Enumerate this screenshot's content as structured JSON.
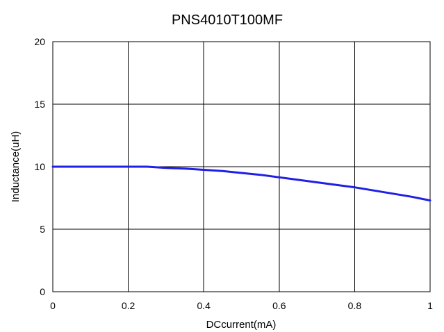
{
  "chart_data": {
    "type": "line",
    "title": "PNS4010T100MF",
    "xlabel": "DCcurrent(mA)",
    "ylabel": "Inductance(uH)",
    "xlim": [
      0,
      1
    ],
    "ylim": [
      0,
      20
    ],
    "x_ticks": [
      "0",
      "0.2",
      "0.4",
      "0.6",
      "0.8",
      "1"
    ],
    "y_ticks": [
      "0",
      "5",
      "10",
      "15",
      "20"
    ],
    "grid": true,
    "legend": "none",
    "colors": {
      "series": "#1f1fe6",
      "grid": "#000000",
      "background": "#ffffff"
    },
    "series": [
      {
        "x": [
          0,
          0.1,
          0.2,
          0.25,
          0.3,
          0.35,
          0.4,
          0.45,
          0.5,
          0.55,
          0.6,
          0.65,
          0.7,
          0.75,
          0.8,
          0.85,
          0.9,
          0.95,
          1
        ],
        "values": [
          10,
          10,
          10,
          10,
          9.9,
          9.85,
          9.75,
          9.65,
          9.5,
          9.35,
          9.15,
          8.95,
          8.75,
          8.55,
          8.35,
          8.1,
          7.85,
          7.6,
          7.3
        ]
      }
    ]
  }
}
